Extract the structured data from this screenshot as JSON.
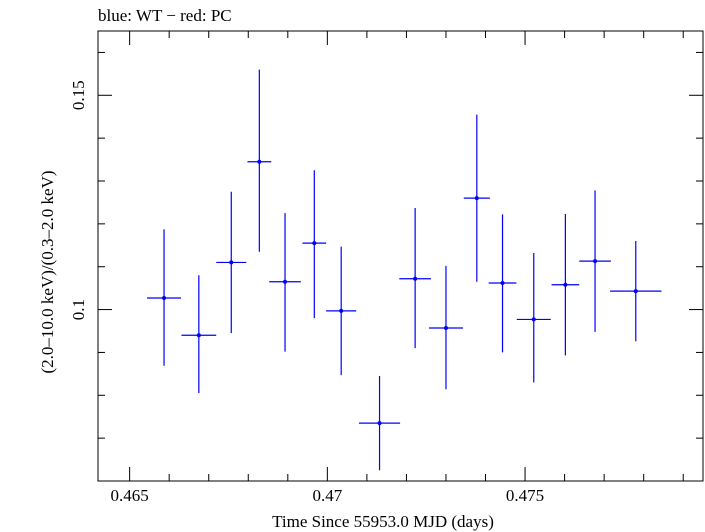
{
  "chart_data": {
    "type": "scatter",
    "title": "blue: WT − red: PC",
    "xlabel": "Time Since 55953.0 MJD (days)",
    "ylabel": "(2.0–10.0 keV)/(0.3–2.0 keV)",
    "xlim": [
      0.4642,
      0.4795
    ],
    "ylim": [
      0.06,
      0.165
    ],
    "xticks": [
      {
        "value": 0.465,
        "label": "0.465"
      },
      {
        "value": 0.47,
        "label": "0.47"
      },
      {
        "value": 0.475,
        "label": "0.475"
      }
    ],
    "yticks": [
      {
        "value": 0.1,
        "label": "0.1"
      },
      {
        "value": 0.15,
        "label": "0.15"
      }
    ],
    "grid": false,
    "series": [
      {
        "color": "#0000ff",
        "points": [
          {
            "x": 0.46587,
            "xerr": 0.00043,
            "y": 0.1027,
            "yerr_low": 0.0158,
            "yerr_high": 0.016
          },
          {
            "x": 0.46675,
            "xerr": 0.00044,
            "y": 0.094,
            "yerr_low": 0.0135,
            "yerr_high": 0.014
          },
          {
            "x": 0.46757,
            "xerr": 0.00038,
            "y": 0.111,
            "yerr_low": 0.0165,
            "yerr_high": 0.0165
          },
          {
            "x": 0.46828,
            "xerr": 0.0003,
            "y": 0.1345,
            "yerr_low": 0.021,
            "yerr_high": 0.0215
          },
          {
            "x": 0.46893,
            "xerr": 0.0004,
            "y": 0.1065,
            "yerr_low": 0.0163,
            "yerr_high": 0.016
          },
          {
            "x": 0.46967,
            "xerr": 0.0003,
            "y": 0.1155,
            "yerr_low": 0.0175,
            "yerr_high": 0.017
          },
          {
            "x": 0.47035,
            "xerr": 0.00038,
            "y": 0.0997,
            "yerr_low": 0.015,
            "yerr_high": 0.015
          },
          {
            "x": 0.47132,
            "xerr": 0.00052,
            "y": 0.0735,
            "yerr_low": 0.011,
            "yerr_high": 0.011
          },
          {
            "x": 0.47222,
            "xerr": 0.0004,
            "y": 0.1072,
            "yerr_low": 0.0162,
            "yerr_high": 0.0165
          },
          {
            "x": 0.473,
            "xerr": 0.00043,
            "y": 0.0957,
            "yerr_low": 0.0143,
            "yerr_high": 0.0145
          },
          {
            "x": 0.47378,
            "xerr": 0.00033,
            "y": 0.126,
            "yerr_low": 0.0195,
            "yerr_high": 0.0195
          },
          {
            "x": 0.47443,
            "xerr": 0.00035,
            "y": 0.1062,
            "yerr_low": 0.0162,
            "yerr_high": 0.016
          },
          {
            "x": 0.47522,
            "xerr": 0.00043,
            "y": 0.0977,
            "yerr_low": 0.0147,
            "yerr_high": 0.0155
          },
          {
            "x": 0.47602,
            "xerr": 0.00035,
            "y": 0.1058,
            "yerr_low": 0.0165,
            "yerr_high": 0.0165
          },
          {
            "x": 0.47677,
            "xerr": 0.0004,
            "y": 0.1113,
            "yerr_low": 0.0165,
            "yerr_high": 0.0165
          },
          {
            "x": 0.4778,
            "xerr": 0.00065,
            "y": 0.1043,
            "yerr_low": 0.0117,
            "yerr_high": 0.0117
          }
        ]
      }
    ]
  }
}
